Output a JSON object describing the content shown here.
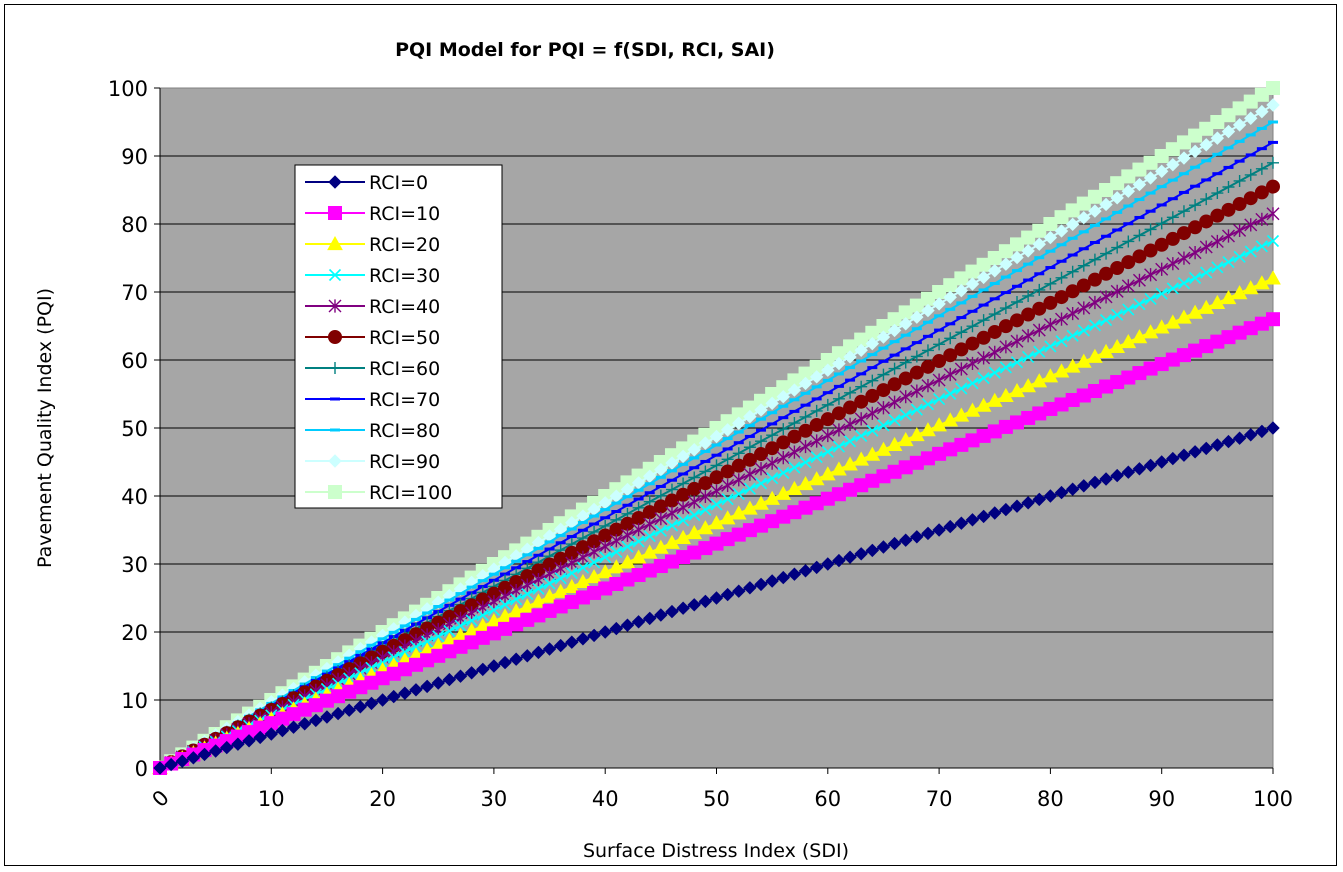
{
  "chart_data": {
    "type": "line",
    "title": "PQI Model for PQI = f(SDI, RCI, SAI)",
    "xlabel": "Surface Distress Index (SDI)",
    "ylabel": "Pavement Quality Index (PQI)",
    "xlim": [
      0,
      100
    ],
    "ylim": [
      0,
      100
    ],
    "x_ticks": [
      "0",
      "10",
      "20",
      "30",
      "40",
      "50",
      "60",
      "70",
      "80",
      "90",
      "100"
    ],
    "y_ticks": [
      "0",
      "10",
      "20",
      "30",
      "40",
      "50",
      "60",
      "70",
      "80",
      "90",
      "100"
    ],
    "x_step": 1,
    "plot_background": "#a6a6a6",
    "grid": "horizontal",
    "legend_position": "upper-left",
    "series": [
      {
        "name": "RCI=0",
        "end_value": 50,
        "color": "#000080",
        "marker": "diamond"
      },
      {
        "name": "RCI=10",
        "end_value": 66,
        "color": "#ff00ff",
        "marker": "square"
      },
      {
        "name": "RCI=20",
        "end_value": 72,
        "color": "#ffff00",
        "marker": "triangle"
      },
      {
        "name": "RCI=30",
        "end_value": 77.5,
        "color": "#00ffff",
        "marker": "x"
      },
      {
        "name": "RCI=40",
        "end_value": 81.5,
        "color": "#800080",
        "marker": "star"
      },
      {
        "name": "RCI=50",
        "end_value": 85.5,
        "color": "#800000",
        "marker": "circle"
      },
      {
        "name": "RCI=60",
        "end_value": 89,
        "color": "#008080",
        "marker": "plus"
      },
      {
        "name": "RCI=70",
        "end_value": 92,
        "color": "#0000ff",
        "marker": "dash"
      },
      {
        "name": "RCI=80",
        "end_value": 95,
        "color": "#00ccff",
        "marker": "dash"
      },
      {
        "name": "RCI=90",
        "end_value": 97.5,
        "color": "#ccffff",
        "marker": "diamond"
      },
      {
        "name": "RCI=100",
        "end_value": 100,
        "color": "#ccffcc",
        "marker": "square"
      }
    ]
  }
}
